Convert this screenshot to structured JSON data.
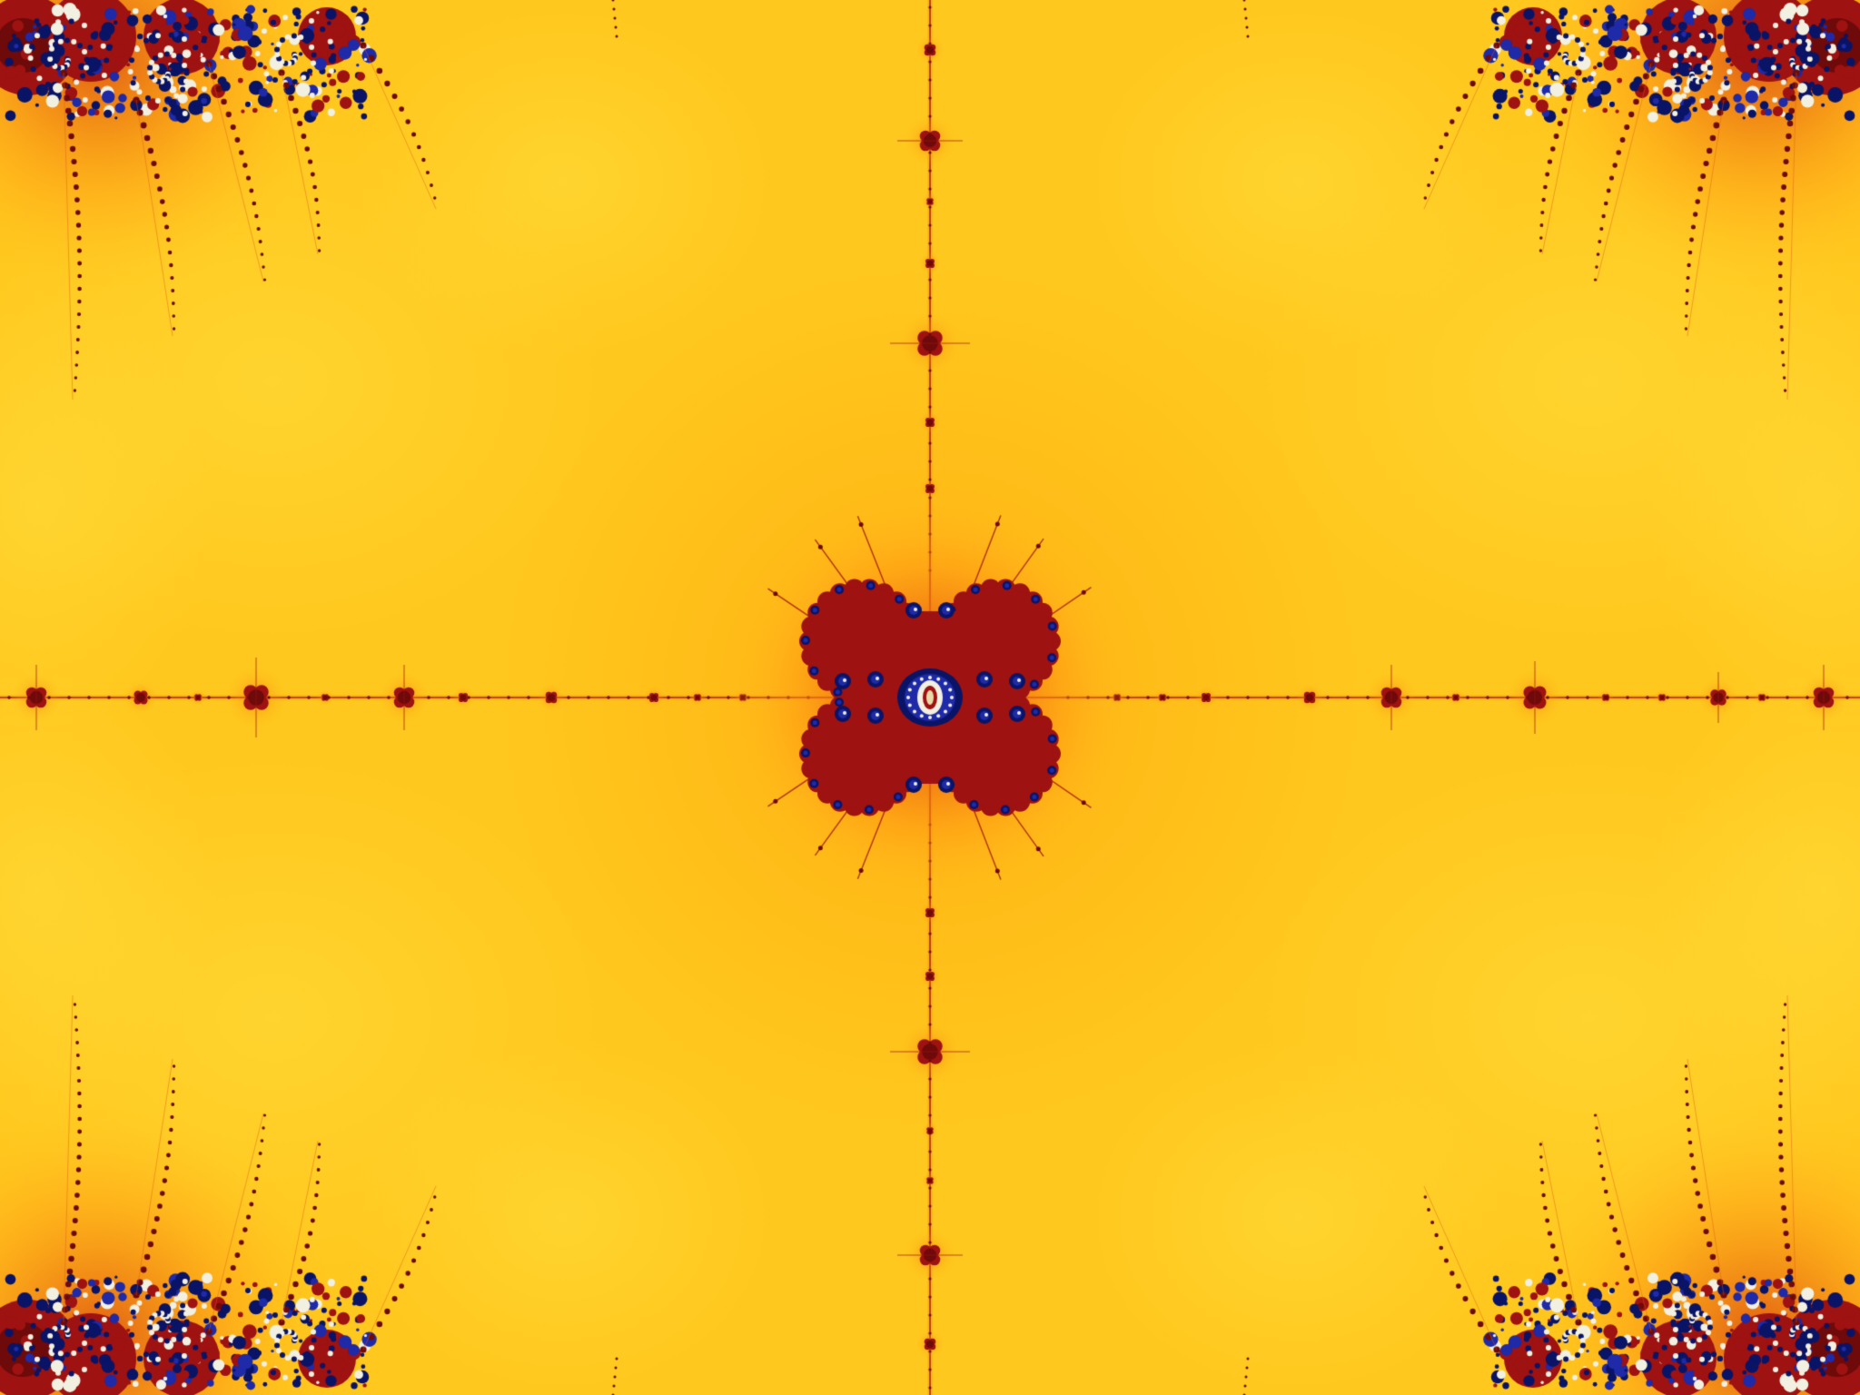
{
  "image": {
    "kind": "mandelbrot-zoom-render",
    "palette": {
      "field_light": "#ffde3c",
      "field": "#ffc81e",
      "field_deep": "#ffb414",
      "halo": "#ff9614",
      "orange": "#e15a12",
      "set_red": "#9e1211",
      "set_dark": "#6e0a0a",
      "blue": "#1e2aa8",
      "navy": "#0a1466",
      "white": "#f2f0e0",
      "cream": "#e8d9a8"
    },
    "motifs": [
      "central-four-lobed-minibrot",
      "horizontal-filament-with-mini-buds",
      "vertical-filament-with-mini-buds",
      "corner-spiral-clusters"
    ]
  }
}
